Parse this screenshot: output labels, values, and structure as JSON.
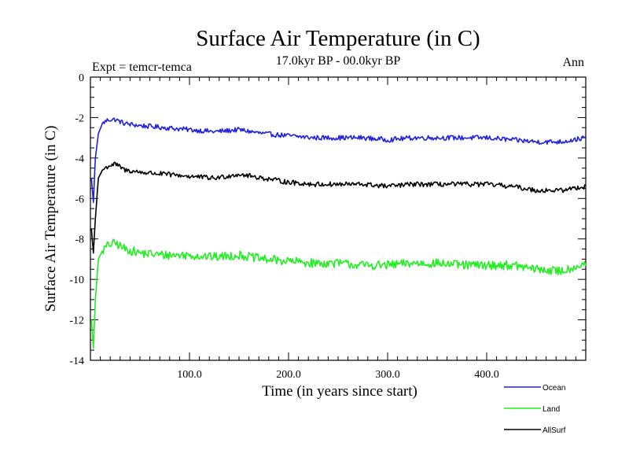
{
  "chart_data": {
    "type": "line",
    "title": "Surface Air Temperature (in C)",
    "subtitle": "17.0kyr BP - 00.0kyr BP",
    "expt_label": "Expt = temcr-temca",
    "season_label": "Ann",
    "xlabel": "Time (in years since start)",
    "ylabel": "Surface Air Temperature (in C)",
    "xlim": [
      0,
      500
    ],
    "ylim": [
      -14,
      0
    ],
    "xticks": [
      100,
      200,
      300,
      400
    ],
    "xtick_labels": [
      "100.0",
      "200.0",
      "300.0",
      "400.0"
    ],
    "yticks": [
      0,
      -2,
      -4,
      -6,
      -8,
      -10,
      -12,
      -14
    ],
    "ytick_labels": [
      "0",
      "-2",
      "-4",
      "-6",
      "-8",
      "-10",
      "-12",
      "-14"
    ],
    "series": [
      {
        "name": "Ocean",
        "color": "#1f1fe0",
        "x": [
          1,
          3,
          5,
          8,
          12,
          18,
          25,
          35,
          50,
          75,
          100,
          125,
          150,
          175,
          200,
          225,
          250,
          275,
          300,
          325,
          350,
          375,
          400,
          425,
          450,
          475,
          500
        ],
        "values": [
          -5.0,
          -6.2,
          -4.0,
          -2.8,
          -2.3,
          -2.1,
          -2.1,
          -2.3,
          -2.4,
          -2.5,
          -2.6,
          -2.7,
          -2.6,
          -2.8,
          -2.9,
          -3.0,
          -3.0,
          -3.0,
          -3.1,
          -3.0,
          -3.0,
          -3.0,
          -3.0,
          -3.1,
          -3.2,
          -3.2,
          -3.0
        ]
      },
      {
        "name": "Land",
        "color": "#22ee22",
        "x": [
          1,
          3,
          5,
          8,
          12,
          18,
          25,
          35,
          50,
          75,
          100,
          125,
          150,
          175,
          200,
          225,
          250,
          275,
          300,
          325,
          350,
          375,
          400,
          425,
          450,
          475,
          500
        ],
        "values": [
          -12.0,
          -13.4,
          -11.0,
          -9.0,
          -8.6,
          -8.3,
          -8.2,
          -8.5,
          -8.7,
          -8.8,
          -8.8,
          -8.9,
          -8.8,
          -9.0,
          -9.1,
          -9.2,
          -9.2,
          -9.3,
          -9.3,
          -9.2,
          -9.2,
          -9.3,
          -9.3,
          -9.3,
          -9.5,
          -9.6,
          -9.2
        ]
      },
      {
        "name": "AllSurf",
        "color": "#000000",
        "x": [
          1,
          3,
          5,
          8,
          12,
          18,
          25,
          35,
          50,
          75,
          100,
          125,
          150,
          175,
          200,
          225,
          250,
          275,
          300,
          325,
          350,
          375,
          400,
          425,
          450,
          475,
          500
        ],
        "values": [
          -7.5,
          -8.7,
          -7.0,
          -5.0,
          -4.6,
          -4.4,
          -4.3,
          -4.6,
          -4.7,
          -4.8,
          -4.9,
          -5.0,
          -4.8,
          -5.0,
          -5.2,
          -5.3,
          -5.3,
          -5.3,
          -5.4,
          -5.3,
          -5.3,
          -5.3,
          -5.3,
          -5.4,
          -5.6,
          -5.6,
          -5.4
        ]
      }
    ],
    "legend_position": "bottom-right"
  }
}
